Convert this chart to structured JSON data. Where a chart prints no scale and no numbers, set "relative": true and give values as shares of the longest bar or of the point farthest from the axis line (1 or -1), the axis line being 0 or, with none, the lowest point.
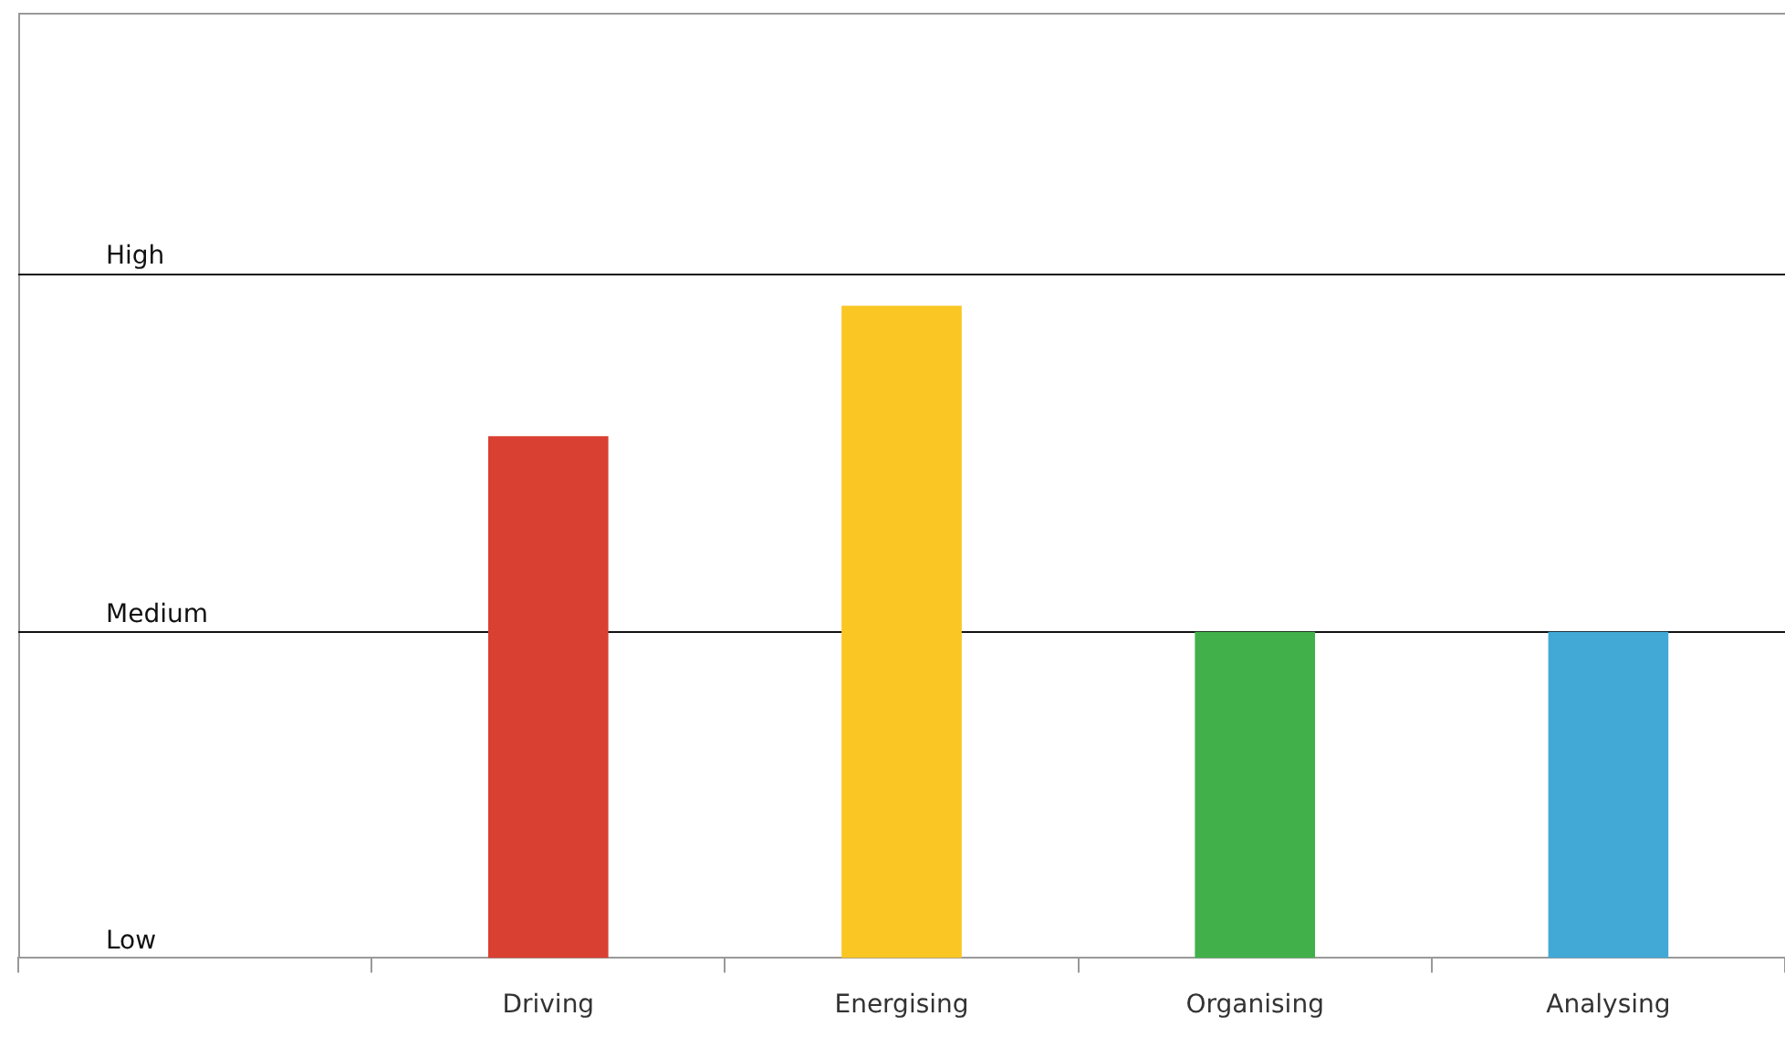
{
  "chart_data": {
    "type": "bar",
    "relative": true,
    "categories": [
      null,
      "Driving",
      "Energising",
      "Organising",
      "Analysing"
    ],
    "values": [
      null,
      0.8,
      1,
      0.5,
      0.5
    ],
    "colors": [
      "#d94032",
      "#d94032",
      "#f9c623",
      "#41b04a",
      "#42a9d6"
    ],
    "annotations": [
      "Low"
    ],
    "ref_lines": [
      {
        "axis": "y",
        "value": 0.5,
        "label": "Medium",
        "color": "#111111"
      },
      {
        "axis": "y",
        "value": 1.05,
        "label": "High",
        "color": "#111111"
      }
    ]
  }
}
